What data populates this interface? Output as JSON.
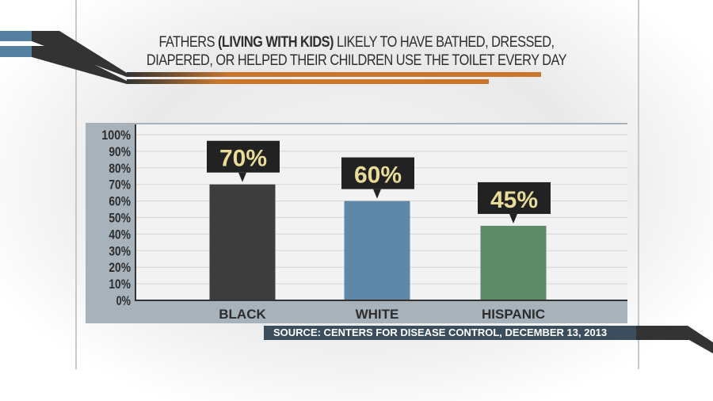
{
  "title": {
    "part1": "FATHERS ",
    "bold": "(LIVING WITH KIDS)",
    "part2": " LIKELY TO HAVE BATHED, DRESSED,",
    "line2": "DIAPERED, OR HELPED THEIR CHILDREN USE THE TOILET EVERY DAY"
  },
  "source": "SOURCE: CENTERS FOR DISEASE CONTROL, DECEMBER 13, 2013",
  "chart_data": {
    "type": "bar",
    "title": "FATHERS (LIVING WITH KIDS) LIKELY TO HAVE BATHED, DRESSED, DIAPERED, OR HELPED THEIR CHILDREN USE THE TOILET EVERY DAY",
    "categories": [
      "BLACK",
      "WHITE",
      "HISPANIC"
    ],
    "values": [
      70,
      60,
      45
    ],
    "data_labels": [
      "70%",
      "60%",
      "45%"
    ],
    "colors": [
      "#3d3d3d",
      "#5f87a7",
      "#5f8a6a"
    ],
    "label_color": "#e8dc98",
    "ylim": [
      0,
      100
    ],
    "yticks": [
      "0%",
      "10%",
      "20%",
      "30%",
      "40%",
      "50%",
      "60%",
      "70%",
      "80%",
      "90%",
      "100%"
    ],
    "grid": true,
    "accent": "#c8762e"
  }
}
